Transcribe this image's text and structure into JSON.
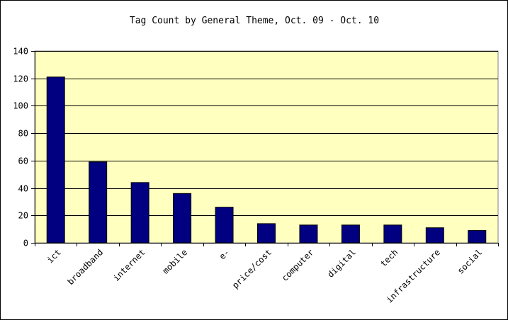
{
  "chart_data": {
    "type": "bar",
    "title": "Tag Count by General Theme, Oct. 09 - Oct. 10",
    "xlabel": "",
    "ylabel": "",
    "categories": [
      "ict",
      "broadband",
      "internet",
      "mobile",
      "e-",
      "price/cost",
      "computer",
      "digital",
      "tech",
      "infrastructure",
      "social"
    ],
    "values": [
      121,
      59,
      44,
      36,
      26,
      14,
      13,
      13,
      13,
      11,
      9
    ],
    "ylim": [
      0,
      140
    ],
    "yticks": [
      0,
      20,
      40,
      60,
      80,
      100,
      120,
      140
    ],
    "grid": true,
    "legend": "none",
    "colors": {
      "bar": "#000080",
      "plot_background": "#FFFFC0",
      "gridline": "#000000",
      "text": "#000000"
    }
  }
}
